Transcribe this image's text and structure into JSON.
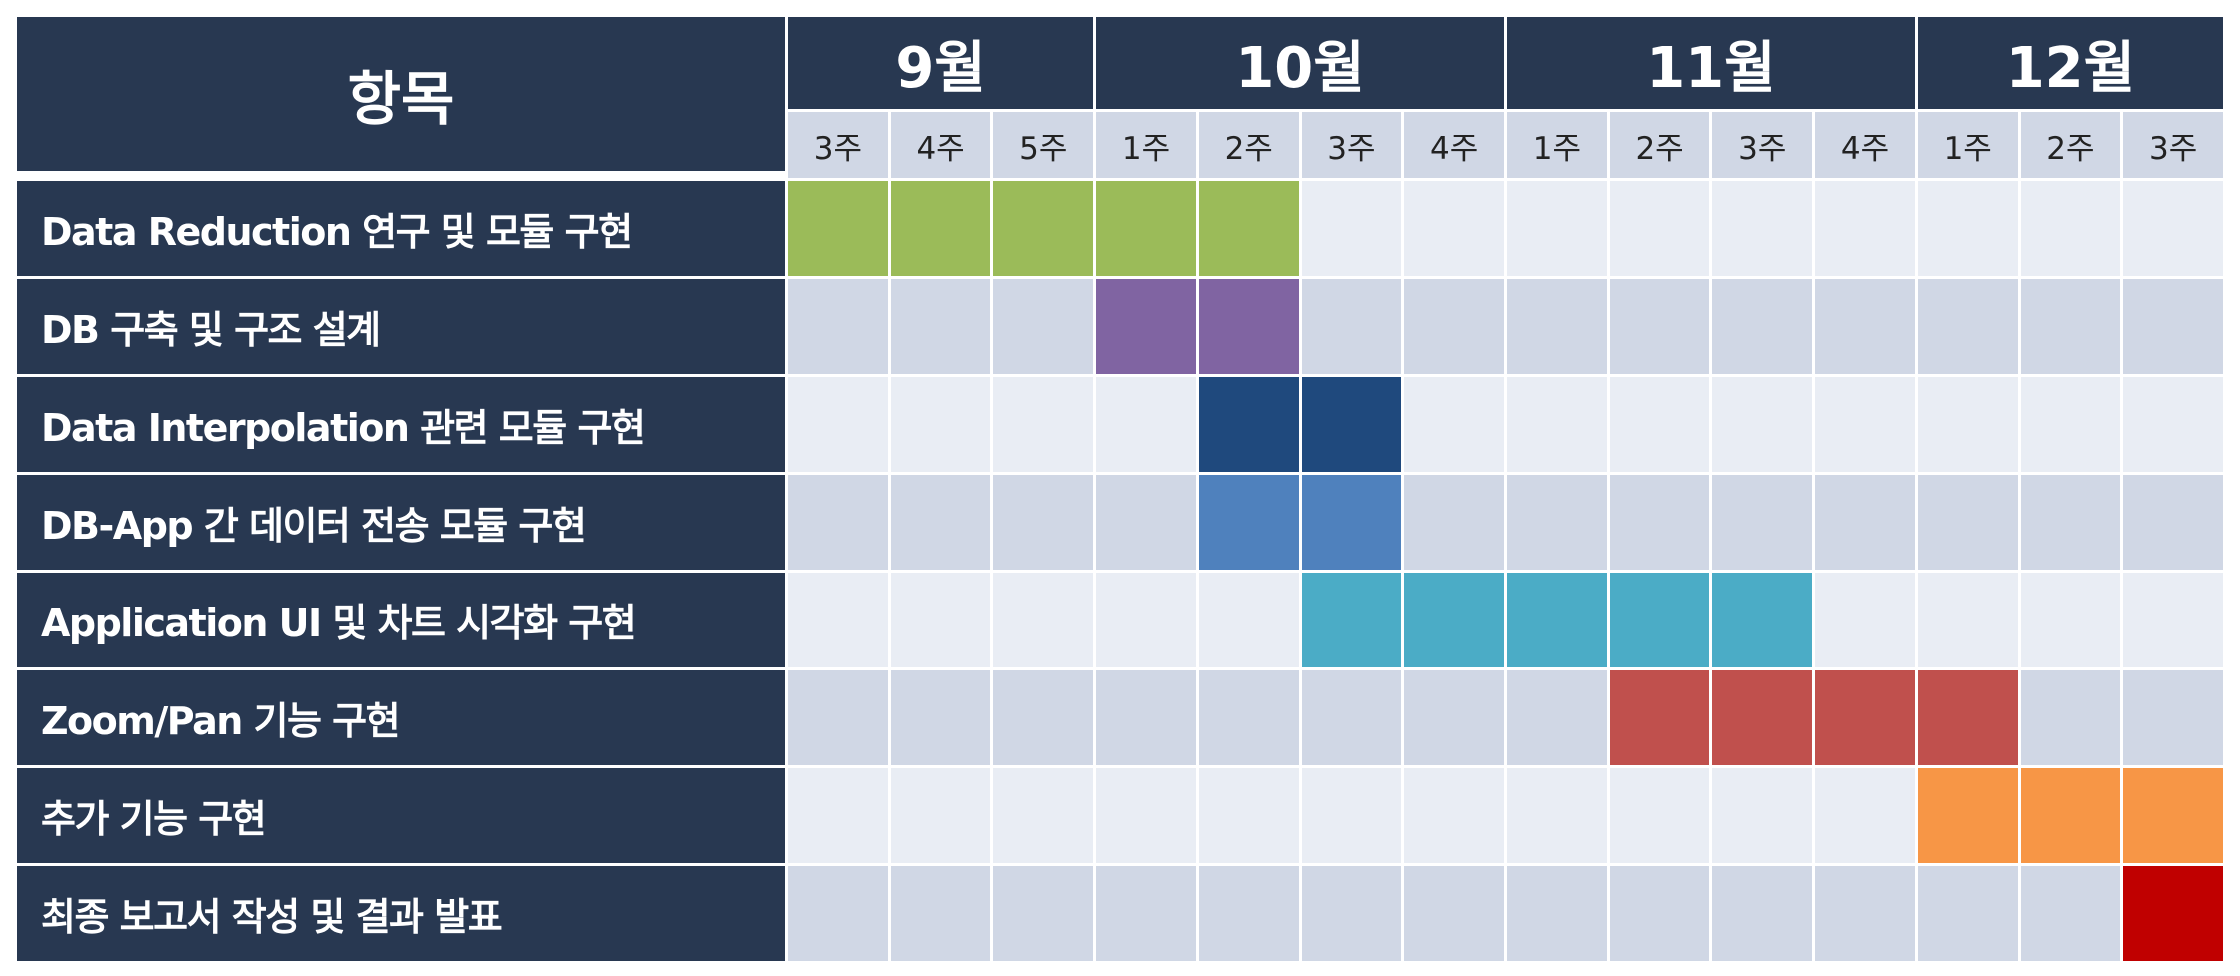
{
  "chart_data": {
    "type": "gantt",
    "header": "항목",
    "months": [
      {
        "label": "9월",
        "weeks": [
          "3주",
          "4주",
          "5주"
        ]
      },
      {
        "label": "10월",
        "weeks": [
          "1주",
          "2주",
          "3주",
          "4주"
        ]
      },
      {
        "label": "11월",
        "weeks": [
          "1주",
          "2주",
          "3주",
          "4주"
        ]
      },
      {
        "label": "12월",
        "weeks": [
          "1주",
          "2주",
          "3주"
        ]
      }
    ],
    "tasks": [
      {
        "label": "Data Reduction 연구 및 모듈 구현",
        "start": 0,
        "end": 4,
        "color": "#9bbb59"
      },
      {
        "label": "DB 구축 및 구조 설계",
        "start": 3,
        "end": 4,
        "color": "#8064a2"
      },
      {
        "label": "Data Interpolation 관련 모듈 구현",
        "start": 4,
        "end": 5,
        "color": "#1f497d"
      },
      {
        "label": "DB-App 간 데이터 전송 모듈 구현",
        "start": 4,
        "end": 5,
        "color": "#4f81bd"
      },
      {
        "label": "Application UI 및 차트 시각화 구현",
        "start": 5,
        "end": 9,
        "color": "#4bacc6"
      },
      {
        "label": "Zoom/Pan 기능 구현",
        "start": 8,
        "end": 11,
        "color": "#c0504d"
      },
      {
        "label": "추가 기능 구현",
        "start": 11,
        "end": 13,
        "color": "#f79646"
      },
      {
        "label": "최종 보고서 작성 및 결과 발표",
        "start": 13,
        "end": 13,
        "color": "#c00000"
      }
    ]
  }
}
